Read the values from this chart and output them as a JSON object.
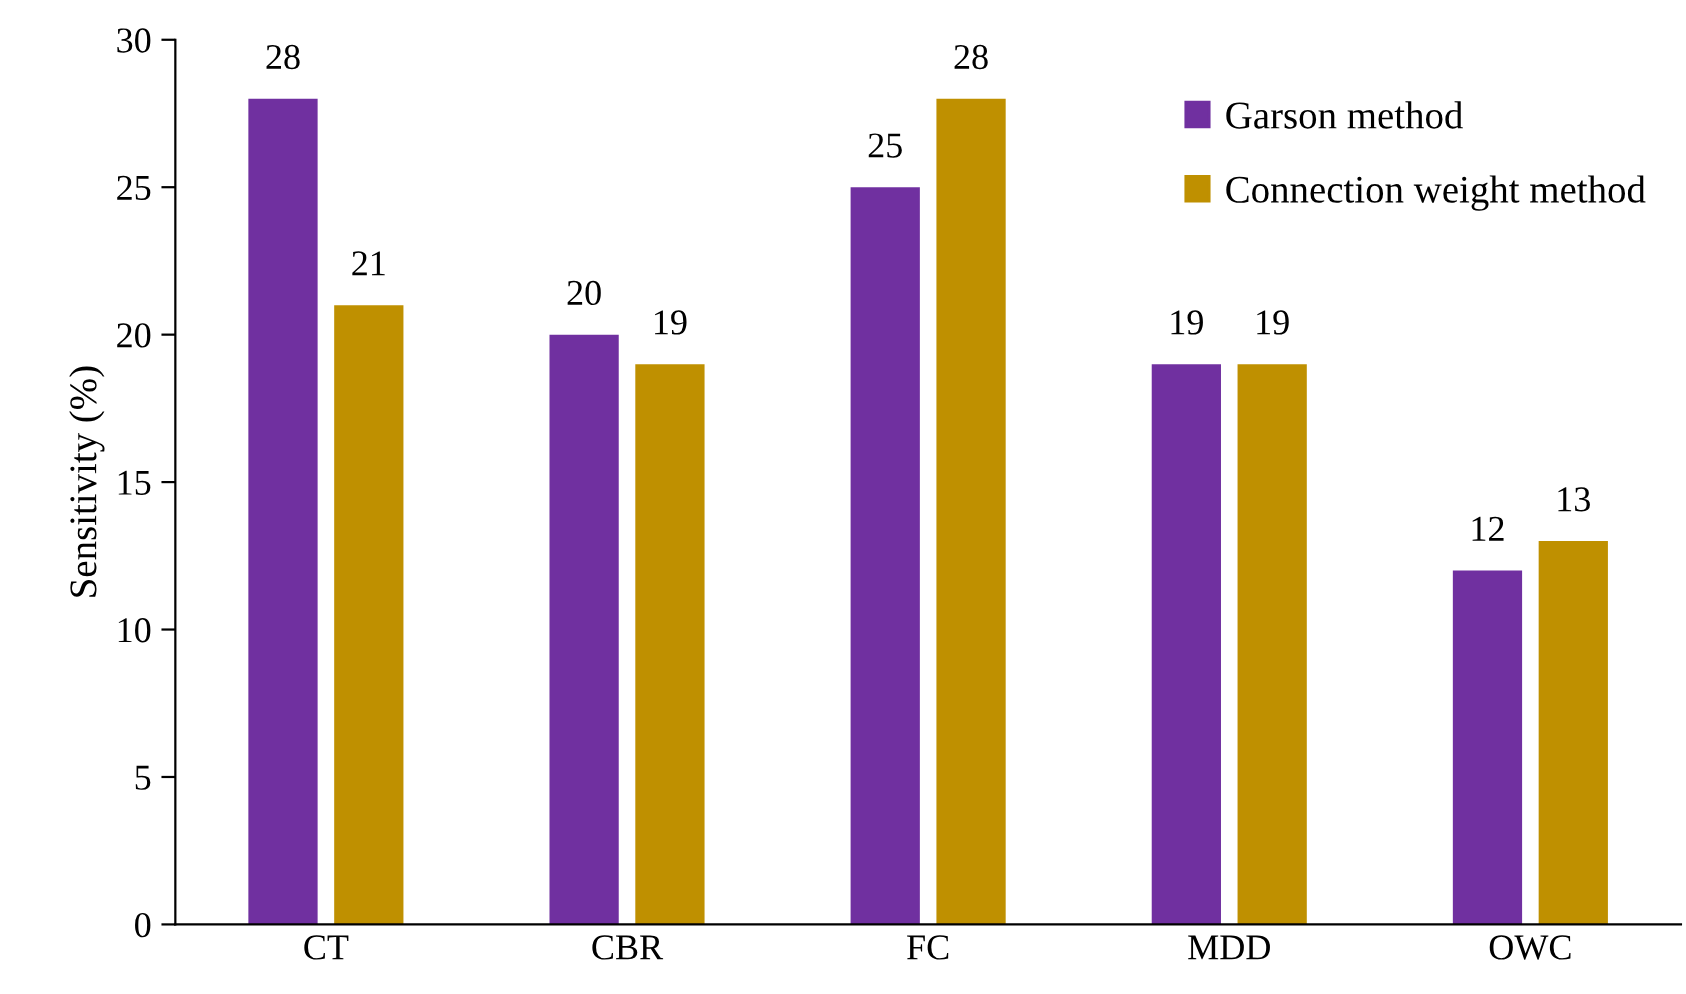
{
  "chart_data": {
    "type": "bar",
    "ylabel": "Sensitivity (%)",
    "categories": [
      "CT",
      "CBR",
      "FC",
      "MDD",
      "OWC"
    ],
    "series": [
      {
        "name": "Garson method",
        "color": "#7030a0",
        "values": [
          28,
          20,
          25,
          19,
          12
        ]
      },
      {
        "name": "Connection weight method",
        "color": "#bf9000",
        "values": [
          21,
          19,
          28,
          19,
          13
        ]
      }
    ],
    "ylim": [
      0,
      30
    ],
    "yticks": [
      0,
      5,
      10,
      15,
      20,
      25,
      30
    ],
    "data_labels": true,
    "legend": "top right",
    "grid": false
  }
}
